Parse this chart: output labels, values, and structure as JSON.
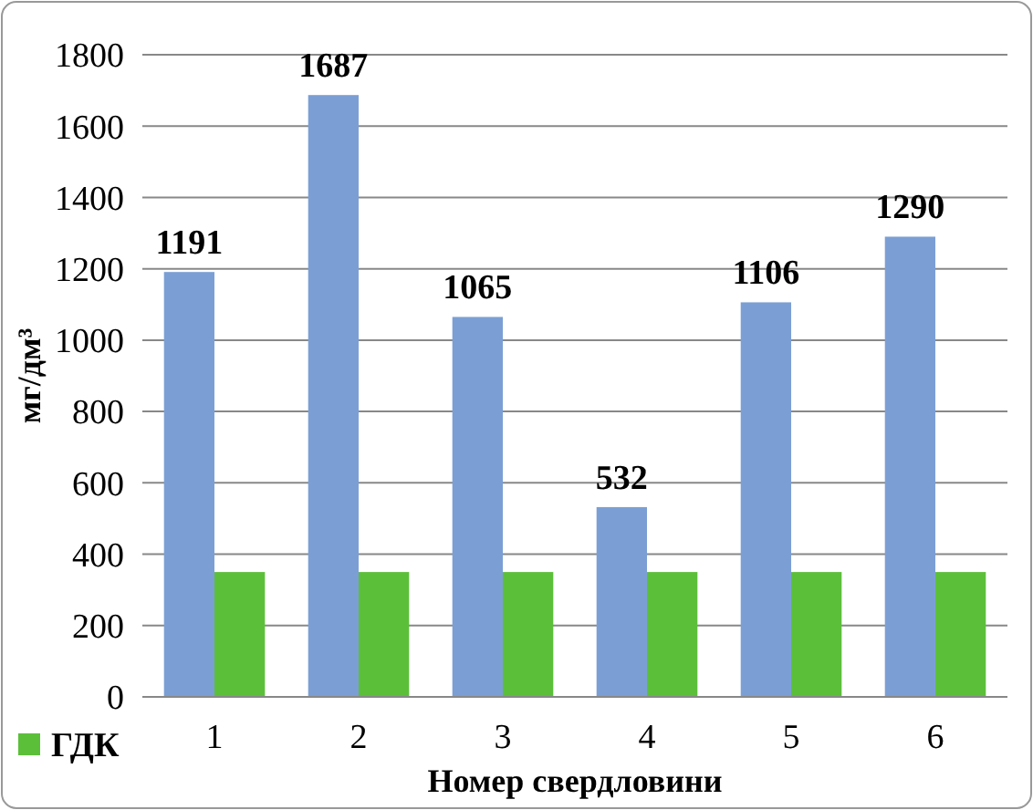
{
  "chart_data": {
    "type": "bar",
    "categories": [
      "1",
      "2",
      "3",
      "4",
      "5",
      "6"
    ],
    "series": [
      {
        "color": "#7b9fd4",
        "values": [
          1191,
          1687,
          1065,
          532,
          1106,
          1290
        ],
        "value_labels": [
          "1191",
          "1687",
          "1065",
          "532",
          "1106",
          "1290"
        ]
      },
      {
        "name": "ГДК",
        "color": "#5cbf3a",
        "values": [
          350,
          350,
          350,
          350,
          350,
          350
        ]
      }
    ],
    "ylim": [
      0,
      1800
    ],
    "yticks": [
      0,
      200,
      400,
      600,
      800,
      1000,
      1200,
      1400,
      1600,
      1800
    ],
    "ylabel": "мг/дм³",
    "xlabel": "Номер свердловини",
    "grid": "y",
    "legend": "bottom left"
  }
}
